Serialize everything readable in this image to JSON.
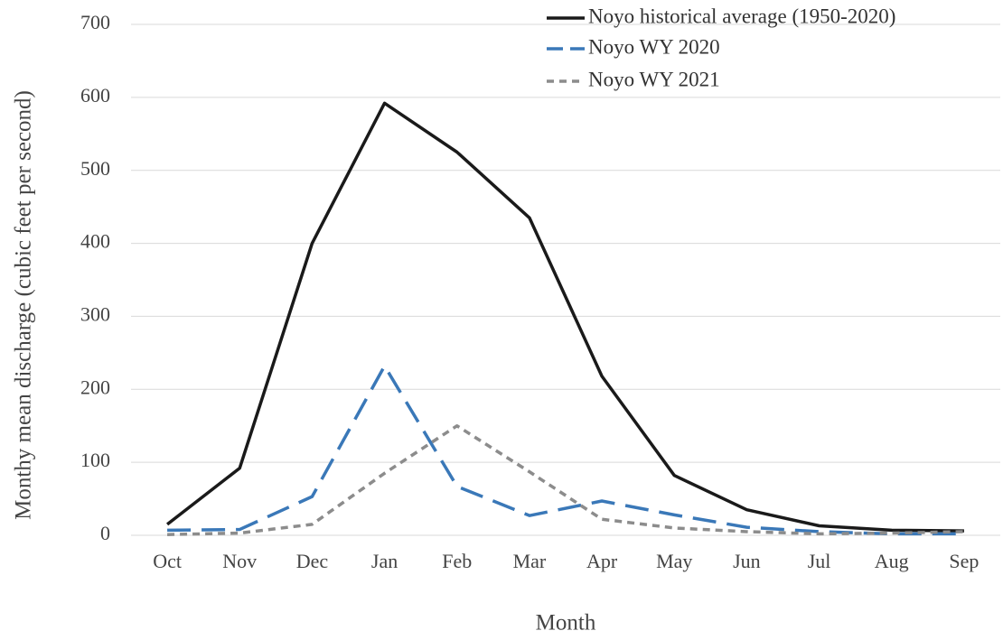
{
  "chart_data": {
    "type": "line",
    "y_label": "Monthy mean discharge (cubic feet per second)",
    "x_label": "Month",
    "categories": [
      "Oct",
      "Nov",
      "Dec",
      "Jan",
      "Feb",
      "Mar",
      "Apr",
      "May",
      "Jun",
      "Jul",
      "Aug",
      "Sep"
    ],
    "series": [
      {
        "name": "Noyo historical average (1950-2020)",
        "color": "#1a1a1a",
        "line_style": "solid",
        "values": [
          15,
          92,
          400,
          592,
          525,
          435,
          218,
          82,
          35,
          13,
          7,
          6
        ]
      },
      {
        "name": "Noyo WY 2020",
        "color": "#3a78b8",
        "line_style": "long-dash",
        "values": [
          7,
          8,
          53,
          232,
          67,
          27,
          47,
          28,
          11,
          5,
          2,
          2
        ]
      },
      {
        "name": "Noyo WY 2021",
        "color": "#8c8c8c",
        "line_style": "short-dash",
        "values": [
          1,
          3,
          15,
          85,
          150,
          87,
          22,
          10,
          5,
          2,
          3,
          5
        ]
      }
    ],
    "ylim": [
      0,
      700
    ],
    "yticks": [
      0,
      100,
      200,
      300,
      400,
      500,
      600,
      700
    ],
    "grid": true,
    "legend": "top-right"
  }
}
